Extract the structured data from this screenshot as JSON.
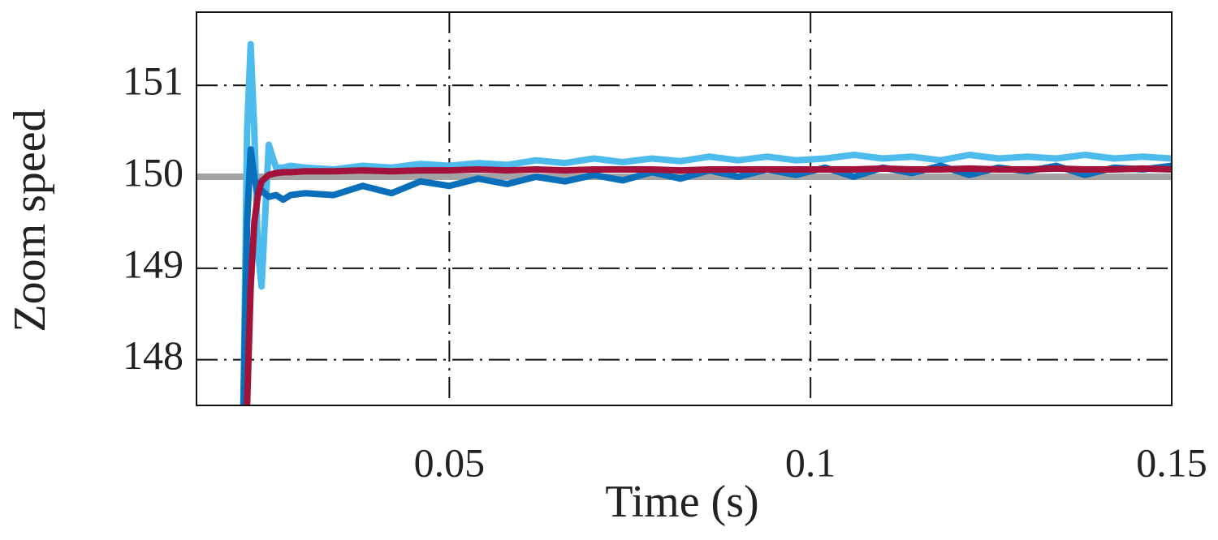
{
  "chart_data": {
    "type": "line",
    "xlabel": "Time (s)",
    "ylabel": "Zoom speed",
    "x": [
      0.015,
      0.0215,
      0.022,
      0.0225,
      0.023,
      0.0235,
      0.024,
      0.025,
      0.026,
      0.027,
      0.028,
      0.03,
      0.034,
      0.038,
      0.042,
      0.046,
      0.05,
      0.054,
      0.058,
      0.062,
      0.066,
      0.07,
      0.074,
      0.078,
      0.082,
      0.086,
      0.09,
      0.094,
      0.098,
      0.102,
      0.106,
      0.11,
      0.114,
      0.118,
      0.122,
      0.126,
      0.13,
      0.134,
      0.138,
      0.142,
      0.146,
      0.15
    ],
    "series": [
      {
        "color": "#a3a3a3",
        "values": [
          150,
          150,
          150,
          150,
          150,
          150,
          150,
          150,
          150,
          150,
          150,
          150,
          150,
          150,
          150,
          150,
          150,
          150,
          150,
          150,
          150,
          150,
          150,
          150,
          150,
          150,
          150,
          150,
          150,
          150,
          150,
          150,
          150,
          150,
          150,
          150,
          150,
          150,
          150,
          150,
          150,
          150
        ]
      },
      {
        "color": "#4dbbec",
        "values": [
          null,
          147.5,
          150.5,
          151.45,
          150.5,
          149.2,
          148.8,
          150.35,
          150.1,
          150.1,
          150.12,
          150.1,
          150.08,
          150.12,
          150.1,
          150.14,
          150.12,
          150.15,
          150.13,
          150.18,
          150.15,
          150.2,
          150.16,
          150.2,
          150.17,
          150.22,
          150.18,
          150.22,
          150.18,
          150.2,
          150.24,
          150.2,
          150.22,
          150.18,
          150.24,
          150.2,
          150.22,
          150.2,
          150.24,
          150.2,
          150.22,
          150.2
        ]
      },
      {
        "color": "#0a6fba",
        "values": [
          null,
          147.5,
          149.5,
          150.3,
          150.0,
          149.8,
          149.85,
          149.78,
          149.8,
          149.75,
          149.8,
          149.82,
          149.8,
          149.9,
          149.82,
          149.95,
          149.9,
          149.98,
          149.92,
          150.0,
          149.95,
          150.02,
          149.96,
          150.05,
          149.98,
          150.07,
          150.0,
          150.08,
          150.02,
          150.1,
          150.0,
          150.1,
          150.04,
          150.12,
          150.02,
          150.1,
          150.06,
          150.12,
          150.02,
          150.1,
          150.08,
          150.12
        ]
      },
      {
        "color": "#a3123a",
        "values": [
          null,
          null,
          147.5,
          148.8,
          149.5,
          149.8,
          149.95,
          150.02,
          150.04,
          150.05,
          150.05,
          150.06,
          150.06,
          150.07,
          150.06,
          150.07,
          150.07,
          150.08,
          150.07,
          150.08,
          150.07,
          150.08,
          150.08,
          150.08,
          150.07,
          150.08,
          150.08,
          150.08,
          150.08,
          150.08,
          150.08,
          150.09,
          150.08,
          150.08,
          150.09,
          150.08,
          150.08,
          150.09,
          150.08,
          150.08,
          150.09,
          150.08
        ]
      }
    ],
    "xlim": [
      0.015,
      0.15
    ],
    "ylim": [
      147.5,
      151.8
    ],
    "xticks": [
      0.05,
      0.1,
      0.15
    ],
    "yticks": [
      148,
      149,
      150,
      151
    ],
    "grid": true
  }
}
